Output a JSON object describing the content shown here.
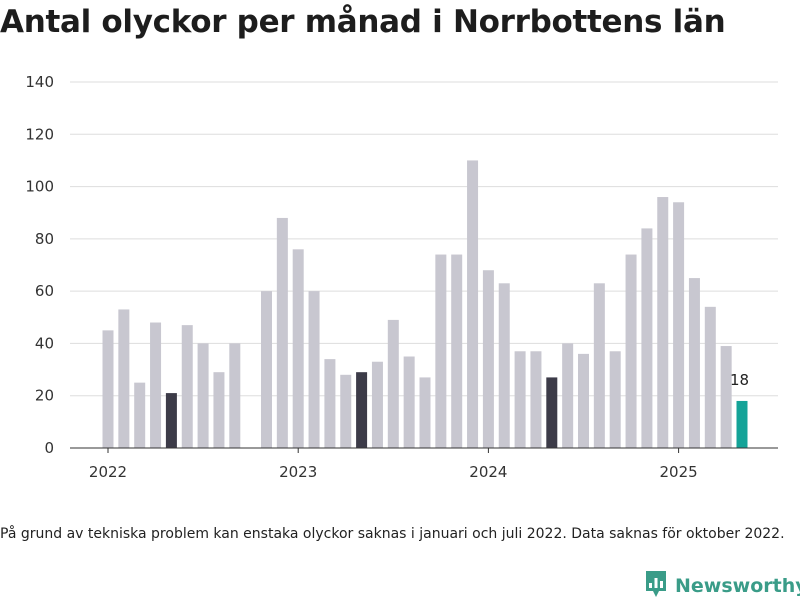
{
  "title": "Antal olyckor per månad i Norrbottens län",
  "footnote": "På grund av tekniska problem kan enstaka olyckor saknas i januari och juli 2022. Data saknas för oktober 2022.",
  "brand": {
    "name": "Newsworthy",
    "icon": "newsworthy-logo-icon",
    "color": "#3a9c88"
  },
  "colors": {
    "default": "#c8c7d0",
    "highlight_same_month": "#3c3b48",
    "latest": "#14a398",
    "grid": "#dddddd",
    "axis": "#333333"
  },
  "chart_data": {
    "type": "bar",
    "ylim": [
      0,
      140
    ],
    "yticks": [
      0,
      20,
      40,
      60,
      80,
      100,
      120,
      140
    ],
    "grid": true,
    "x_axis_labels": [
      "2022",
      "2023",
      "2024",
      "2025"
    ],
    "months": [
      "2022-01",
      "2022-02",
      "2022-03",
      "2022-04",
      "2022-05",
      "2022-06",
      "2022-07",
      "2022-08",
      "2022-09",
      "2022-10",
      "2022-11",
      "2022-12",
      "2023-01",
      "2023-02",
      "2023-03",
      "2023-04",
      "2023-05",
      "2023-06",
      "2023-07",
      "2023-08",
      "2023-09",
      "2023-10",
      "2023-11",
      "2023-12",
      "2024-01",
      "2024-02",
      "2024-03",
      "2024-04",
      "2024-05",
      "2024-06",
      "2024-07",
      "2024-08",
      "2024-09",
      "2024-10",
      "2024-11",
      "2024-12",
      "2025-01",
      "2025-02",
      "2025-03",
      "2025-04",
      "2025-05"
    ],
    "values": [
      45,
      53,
      25,
      48,
      21,
      47,
      40,
      29,
      40,
      null,
      60,
      88,
      76,
      60,
      34,
      28,
      29,
      33,
      49,
      35,
      27,
      74,
      74,
      110,
      68,
      63,
      37,
      37,
      27,
      40,
      36,
      63,
      37,
      74,
      84,
      96,
      94,
      65,
      54,
      39,
      18
    ],
    "highlighted_months": [
      "2022-05",
      "2023-05",
      "2024-05"
    ],
    "latest_month": "2025-05",
    "latest_label": "18"
  }
}
